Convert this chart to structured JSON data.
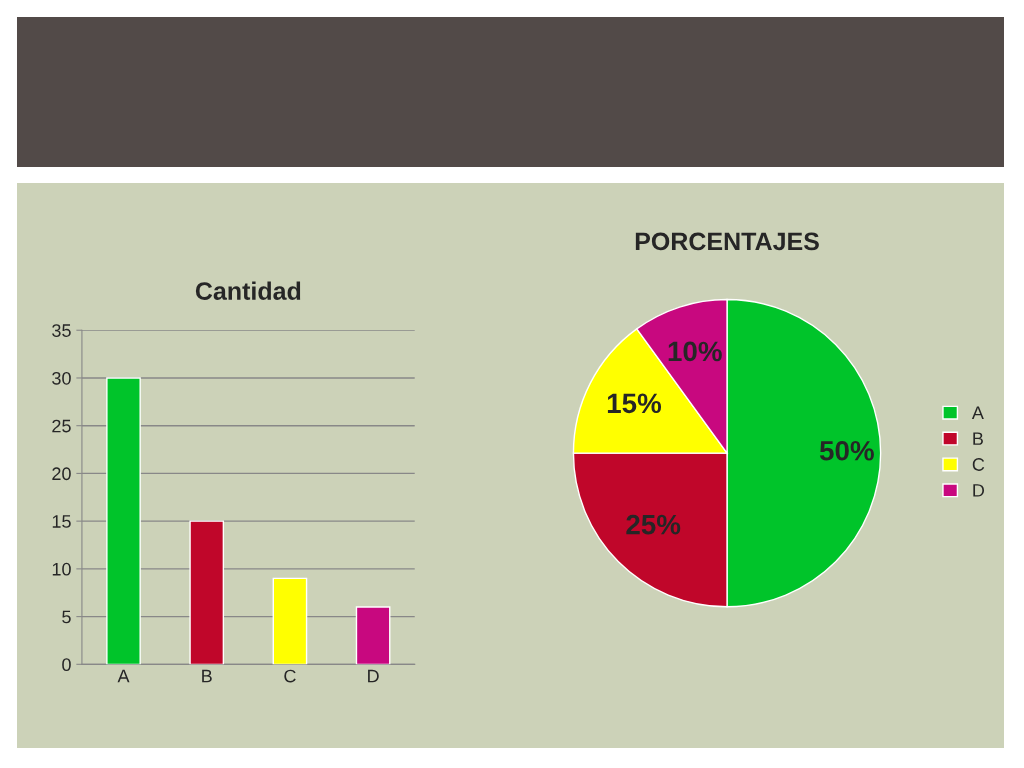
{
  "chart_data": [
    {
      "type": "bar",
      "title": "Cantidad",
      "categories": [
        "A",
        "B",
        "C",
        "D"
      ],
      "values": [
        30,
        15,
        9,
        6
      ],
      "colors": [
        "#00c42a",
        "#c0062a",
        "#ffff00",
        "#c8087f"
      ],
      "ylim": [
        0,
        35
      ],
      "yticks": [
        0,
        5,
        10,
        15,
        20,
        25,
        30,
        35
      ],
      "grid": "y",
      "legend": false
    },
    {
      "type": "pie",
      "title": "PORCENTAJES",
      "categories": [
        "A",
        "B",
        "C",
        "D"
      ],
      "values": [
        50,
        25,
        15,
        10
      ],
      "colors": [
        "#00c42a",
        "#c0062a",
        "#ffff00",
        "#c8087f"
      ],
      "value_labels": [
        "50%",
        "25%",
        "15%",
        "10%"
      ],
      "legend": "right"
    }
  ]
}
